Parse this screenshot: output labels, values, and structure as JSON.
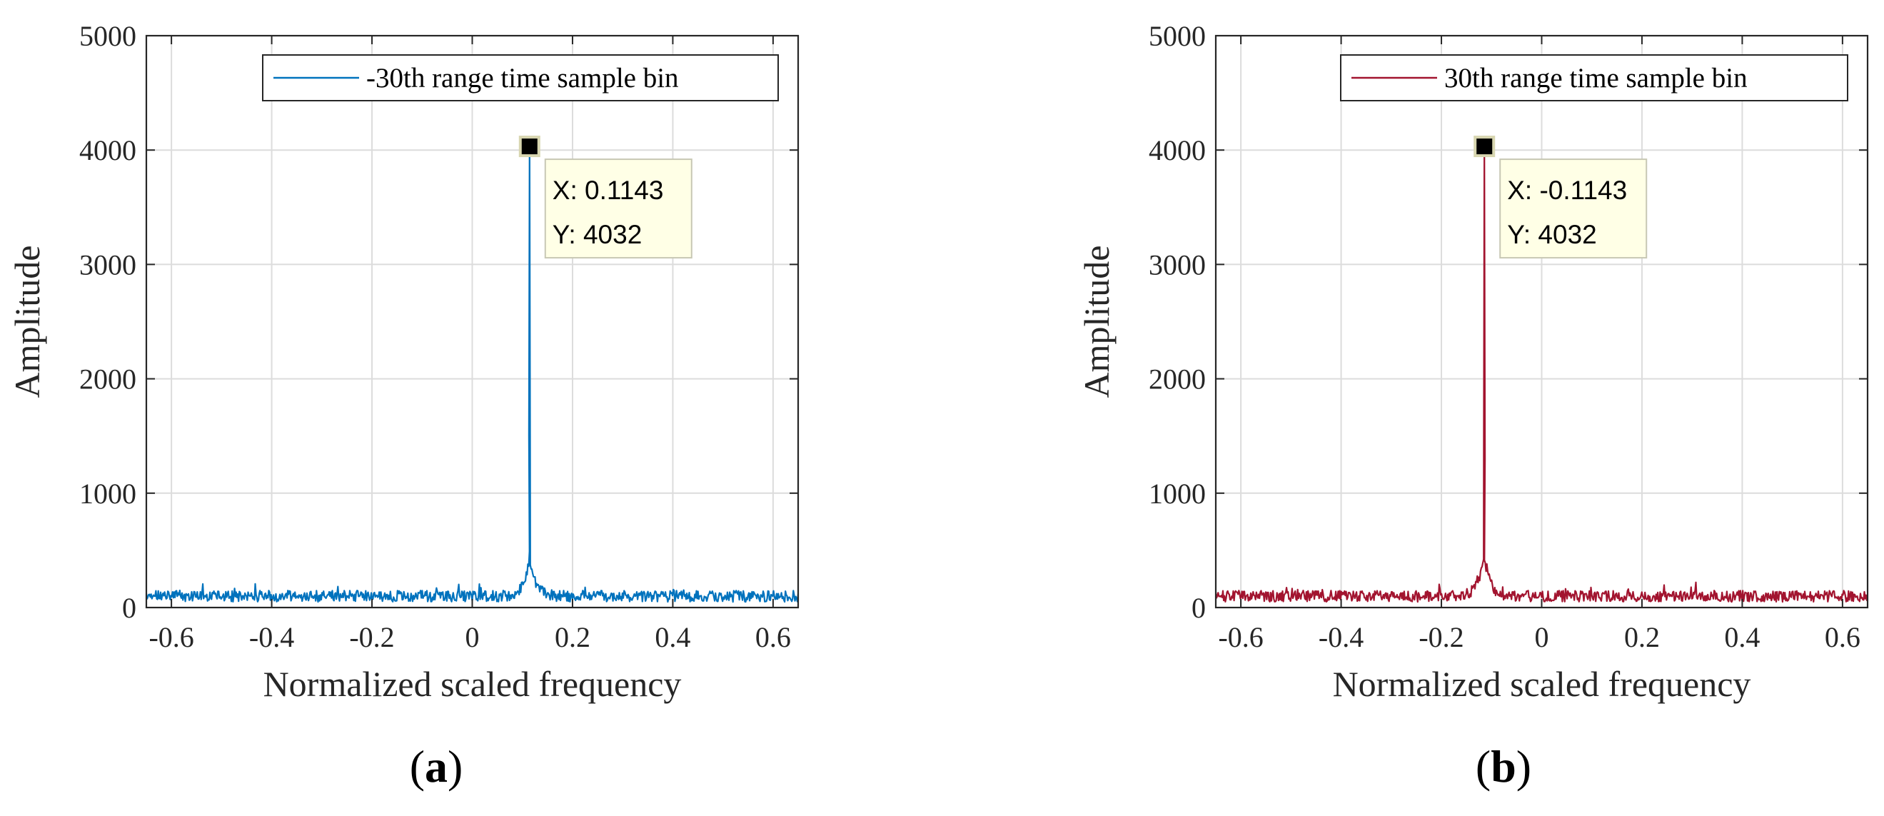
{
  "chart_data": [
    {
      "panel_label": "a",
      "type": "line",
      "xlabel": "Normalized scaled frequency",
      "ylabel": "Amplitude",
      "xlim": [
        -0.65,
        0.65
      ],
      "ylim": [
        0,
        5000
      ],
      "xticks": [
        -0.6,
        -0.4,
        -0.2,
        0,
        0.2,
        0.4,
        0.6
      ],
      "xtick_labels": [
        "-0.6",
        "-0.4",
        "-0.2",
        "0",
        "0.2",
        "0.4",
        "0.6"
      ],
      "yticks": [
        0,
        1000,
        2000,
        3000,
        4000,
        5000
      ],
      "ytick_labels": [
        "0",
        "1000",
        "2000",
        "3000",
        "4000",
        "5000"
      ],
      "grid": true,
      "legend_position": "top-right",
      "color": "#0072BD",
      "series": [
        {
          "name": "-30th range time sample bin",
          "noise_level": 110,
          "peak": {
            "x": 0.1143,
            "y": 4032
          }
        }
      ],
      "datatip": {
        "x": 0.1143,
        "y": 4032,
        "x_text": "X: 0.1143",
        "y_text": "Y: 4032"
      }
    },
    {
      "panel_label": "b",
      "type": "line",
      "xlabel": "Normalized scaled frequency",
      "ylabel": "Amplitude",
      "xlim": [
        -0.65,
        0.65
      ],
      "ylim": [
        0,
        5000
      ],
      "xticks": [
        -0.6,
        -0.4,
        -0.2,
        0,
        0.2,
        0.4,
        0.6
      ],
      "xtick_labels": [
        "-0.6",
        "-0.4",
        "-0.2",
        "0",
        "0.2",
        "0.4",
        "0.6"
      ],
      "yticks": [
        0,
        1000,
        2000,
        3000,
        4000,
        5000
      ],
      "ytick_labels": [
        "0",
        "1000",
        "2000",
        "3000",
        "4000",
        "5000"
      ],
      "grid": true,
      "legend_position": "top-right",
      "color": "#A2142F",
      "series": [
        {
          "name": "30th range time sample bin",
          "noise_level": 110,
          "peak": {
            "x": -0.1143,
            "y": 4032
          }
        }
      ],
      "datatip": {
        "x": -0.1143,
        "y": 4032,
        "x_text": "X: -0.1143",
        "y_text": "Y: 4032"
      }
    }
  ],
  "captions": [
    {
      "open": "(",
      "letter": "a",
      "close": ")"
    },
    {
      "open": "(",
      "letter": "b",
      "close": ")"
    }
  ]
}
